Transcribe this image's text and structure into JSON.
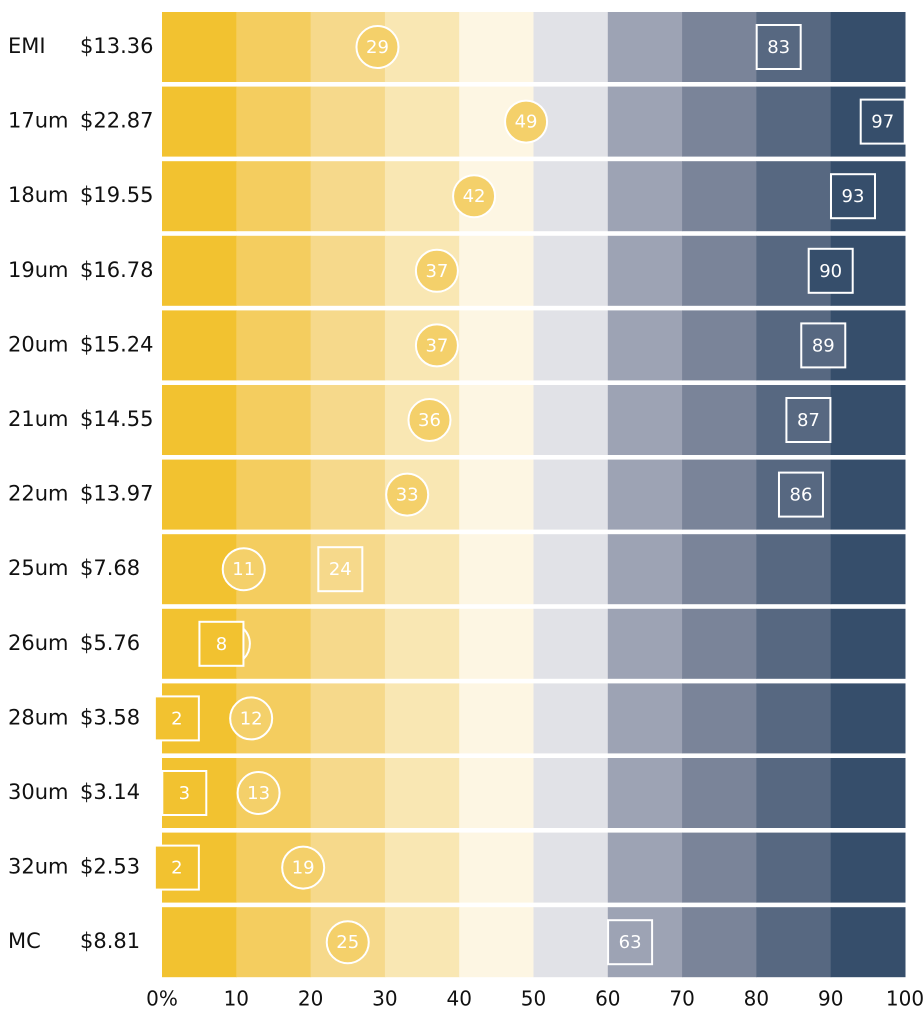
{
  "chart_data": {
    "type": "percentile-band",
    "categories": [
      "EMI",
      "17um",
      "18um",
      "19um",
      "20um",
      "21um",
      "22um",
      "25um",
      "26um",
      "28um",
      "30um",
      "32um",
      "MC"
    ],
    "prices": [
      "$13.36",
      "$22.87",
      "$19.55",
      "$16.78",
      "$15.24",
      "$14.55",
      "$13.97",
      "$7.68",
      "$5.76",
      "$3.58",
      "$3.14",
      "$2.53",
      "$8.81"
    ],
    "series": [
      {
        "marker": "circle",
        "color": "#f4d06a",
        "values": [
          29,
          49,
          42,
          37,
          37,
          36,
          33,
          11,
          9,
          12,
          13,
          19,
          25
        ]
      },
      {
        "marker": "square",
        "values": [
          83,
          97,
          93,
          90,
          89,
          87,
          86,
          24,
          8,
          2,
          3,
          2,
          63
        ]
      }
    ],
    "band_colors": [
      "#f2c230",
      "#f4cd5f",
      "#f6d98b",
      "#f9e7b3",
      "#fdf6e3",
      "#e1e2e7",
      "#9da3b4",
      "#7a8499",
      "#576881",
      "#364e6b"
    ],
    "xlim": [
      0,
      100
    ],
    "xticks": [
      {
        "value": 0,
        "label": "0%"
      },
      10,
      20,
      30,
      40,
      50,
      60,
      70,
      80,
      90,
      100
    ]
  }
}
